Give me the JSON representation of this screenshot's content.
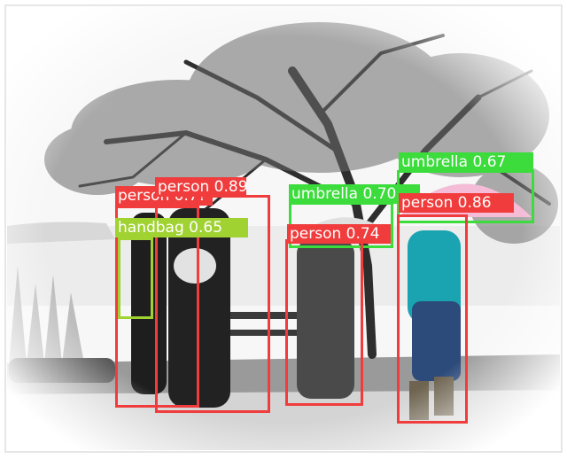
{
  "colors": {
    "person": "#f03c3c",
    "umbrella": "#3cdc3c",
    "handbag": "#a0d232"
  },
  "detections": [
    {
      "text": "person 0.89",
      "cls": "person"
    },
    {
      "text": "person 0.7?",
      "cls": "person"
    },
    {
      "text": "handbag 0.65",
      "cls": "handbag"
    },
    {
      "text": "umbrella 0.70",
      "cls": "umbrella"
    },
    {
      "text": "person 0.74",
      "cls": "person"
    },
    {
      "text": "umbrella 0.67",
      "cls": "umbrella"
    },
    {
      "text": "person 0.86",
      "cls": "person"
    }
  ]
}
